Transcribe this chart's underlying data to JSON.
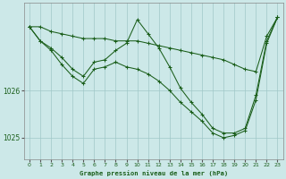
{
  "title": "Graphe pression niveau de la mer (hPa)",
  "bg_color": "#cce8e8",
  "grid_color": "#a0c8c8",
  "line_color": "#1a5e1a",
  "xlim": [
    -0.5,
    23.5
  ],
  "ylim": [
    1024.55,
    1027.85
  ],
  "yticks": [
    1025,
    1026
  ],
  "xticks": [
    0,
    1,
    2,
    3,
    4,
    5,
    6,
    7,
    8,
    9,
    10,
    11,
    12,
    13,
    14,
    15,
    16,
    17,
    18,
    19,
    20,
    21,
    22,
    23
  ],
  "series": [
    {
      "x": [
        0,
        1,
        2,
        3,
        4,
        5,
        6,
        7,
        8,
        9,
        10,
        11,
        12,
        13,
        14,
        15,
        16,
        17,
        18,
        19,
        20,
        21,
        22,
        23
      ],
      "y": [
        1027.35,
        1027.35,
        1027.25,
        1027.2,
        1027.15,
        1027.1,
        1027.1,
        1027.1,
        1027.05,
        1027.05,
        1027.05,
        1027.0,
        1026.95,
        1026.9,
        1026.85,
        1026.8,
        1026.75,
        1026.7,
        1026.65,
        1026.55,
        1026.45,
        1026.4,
        1027.15,
        1027.55
      ]
    },
    {
      "x": [
        0,
        1,
        2,
        3,
        4,
        5,
        6,
        7,
        8,
        9,
        10,
        11,
        12,
        13,
        14,
        15,
        16,
        17,
        18,
        19,
        20,
        21,
        22,
        23
      ],
      "y": [
        1027.35,
        1027.05,
        1026.9,
        1026.7,
        1026.45,
        1026.3,
        1026.6,
        1026.65,
        1026.85,
        1027.0,
        1027.5,
        1027.2,
        1026.9,
        1026.5,
        1026.05,
        1025.75,
        1025.5,
        1025.2,
        1025.1,
        1025.1,
        1025.2,
        1025.9,
        1027.05,
        1027.55
      ]
    },
    {
      "x": [
        0,
        1,
        2,
        3,
        4,
        5,
        6,
        7,
        8,
        9,
        10,
        11,
        12,
        13,
        14,
        15,
        16,
        17,
        18,
        19,
        20,
        21,
        22,
        23
      ],
      "y": [
        1027.35,
        1027.05,
        1026.85,
        1026.55,
        1026.3,
        1026.15,
        1026.45,
        1026.5,
        1026.6,
        1026.5,
        1026.45,
        1026.35,
        1026.2,
        1026.0,
        1025.75,
        1025.55,
        1025.35,
        1025.1,
        1025.0,
        1025.05,
        1025.15,
        1025.8,
        1027.0,
        1027.55
      ]
    }
  ]
}
